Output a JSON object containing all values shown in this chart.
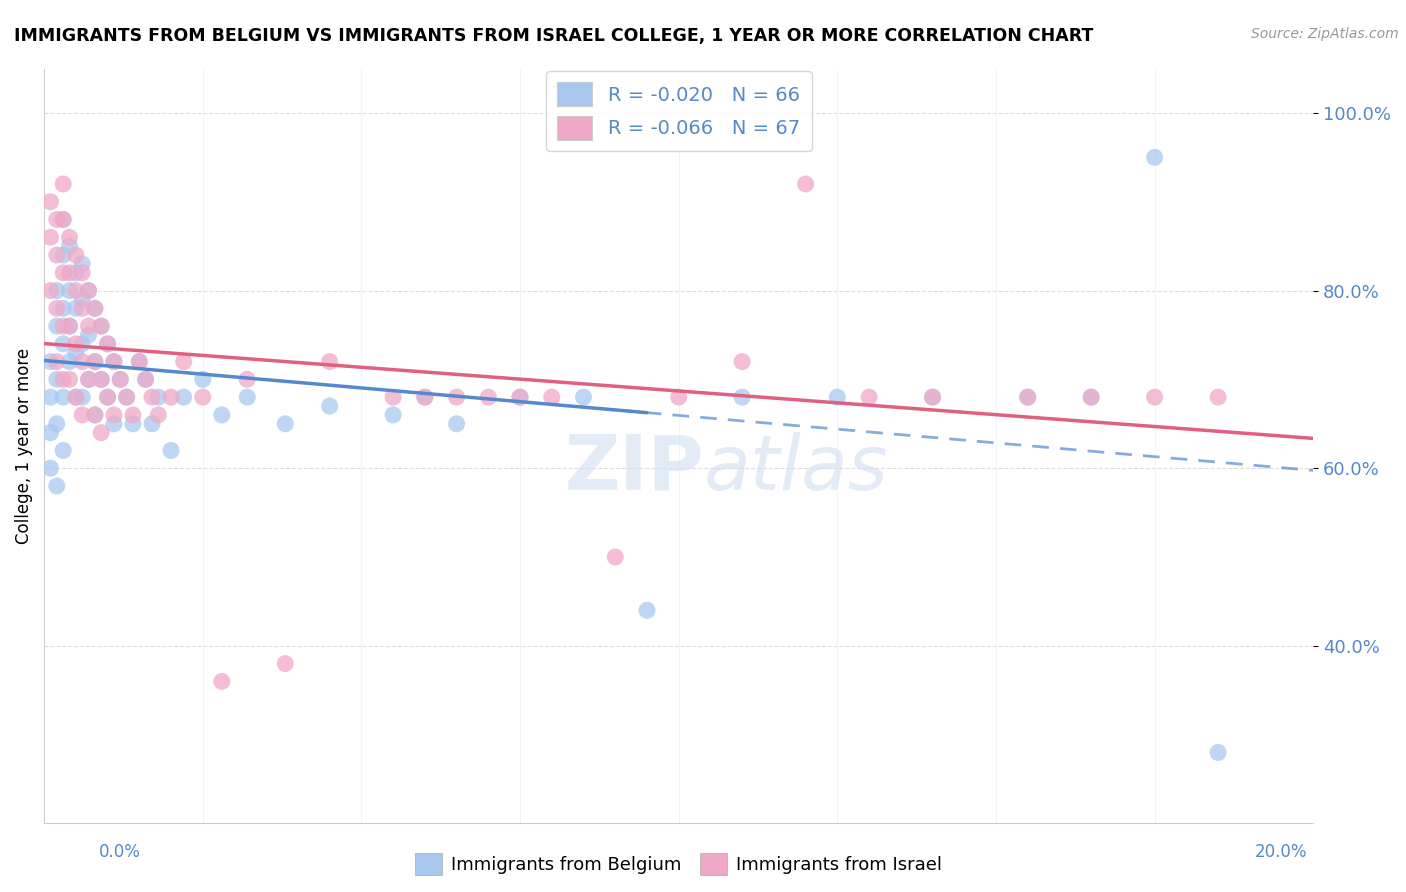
{
  "title": "IMMIGRANTS FROM BELGIUM VS IMMIGRANTS FROM ISRAEL COLLEGE, 1 YEAR OR MORE CORRELATION CHART",
  "source": "Source: ZipAtlas.com",
  "ylabel": "College, 1 year or more",
  "legend_label_belgium": "Immigrants from Belgium",
  "legend_label_israel": "Immigrants from Israel",
  "belgium_color": "#a8c8f0",
  "israel_color": "#f0a8c8",
  "belgium_line_color": "#5588cc",
  "israel_line_color": "#e06080",
  "r_belgium": -0.02,
  "n_belgium": 66,
  "r_israel": -0.066,
  "n_israel": 67,
  "xlim": [
    0.0,
    0.2
  ],
  "ylim": [
    0.2,
    1.05
  ],
  "watermark": "ZIPatlas",
  "belgium_x": [
    0.001,
    0.001,
    0.001,
    0.001,
    0.002,
    0.002,
    0.002,
    0.002,
    0.002,
    0.003,
    0.003,
    0.003,
    0.003,
    0.003,
    0.003,
    0.004,
    0.004,
    0.004,
    0.004,
    0.005,
    0.005,
    0.005,
    0.005,
    0.006,
    0.006,
    0.006,
    0.006,
    0.007,
    0.007,
    0.007,
    0.008,
    0.008,
    0.008,
    0.009,
    0.009,
    0.01,
    0.01,
    0.011,
    0.011,
    0.012,
    0.013,
    0.014,
    0.015,
    0.016,
    0.017,
    0.018,
    0.02,
    0.022,
    0.025,
    0.028,
    0.032,
    0.038,
    0.045,
    0.055,
    0.06,
    0.065,
    0.075,
    0.085,
    0.095,
    0.11,
    0.125,
    0.14,
    0.155,
    0.165,
    0.175,
    0.185
  ],
  "belgium_y": [
    0.72,
    0.68,
    0.64,
    0.6,
    0.8,
    0.76,
    0.7,
    0.65,
    0.58,
    0.88,
    0.84,
    0.78,
    0.74,
    0.68,
    0.62,
    0.85,
    0.8,
    0.76,
    0.72,
    0.82,
    0.78,
    0.73,
    0.68,
    0.83,
    0.79,
    0.74,
    0.68,
    0.8,
    0.75,
    0.7,
    0.78,
    0.72,
    0.66,
    0.76,
    0.7,
    0.74,
    0.68,
    0.72,
    0.65,
    0.7,
    0.68,
    0.65,
    0.72,
    0.7,
    0.65,
    0.68,
    0.62,
    0.68,
    0.7,
    0.66,
    0.68,
    0.65,
    0.67,
    0.66,
    0.68,
    0.65,
    0.68,
    0.68,
    0.44,
    0.68,
    0.68,
    0.68,
    0.68,
    0.68,
    0.95,
    0.28
  ],
  "israel_x": [
    0.001,
    0.001,
    0.001,
    0.002,
    0.002,
    0.002,
    0.002,
    0.003,
    0.003,
    0.003,
    0.003,
    0.003,
    0.004,
    0.004,
    0.004,
    0.004,
    0.005,
    0.005,
    0.005,
    0.005,
    0.006,
    0.006,
    0.006,
    0.006,
    0.007,
    0.007,
    0.007,
    0.008,
    0.008,
    0.008,
    0.009,
    0.009,
    0.009,
    0.01,
    0.01,
    0.011,
    0.011,
    0.012,
    0.013,
    0.014,
    0.015,
    0.016,
    0.017,
    0.018,
    0.02,
    0.022,
    0.025,
    0.028,
    0.032,
    0.038,
    0.045,
    0.055,
    0.065,
    0.075,
    0.09,
    0.1,
    0.11,
    0.13,
    0.14,
    0.155,
    0.165,
    0.175,
    0.185,
    0.06,
    0.07,
    0.08,
    0.12
  ],
  "israel_y": [
    0.9,
    0.86,
    0.8,
    0.88,
    0.84,
    0.78,
    0.72,
    0.92,
    0.88,
    0.82,
    0.76,
    0.7,
    0.86,
    0.82,
    0.76,
    0.7,
    0.84,
    0.8,
    0.74,
    0.68,
    0.82,
    0.78,
    0.72,
    0.66,
    0.8,
    0.76,
    0.7,
    0.78,
    0.72,
    0.66,
    0.76,
    0.7,
    0.64,
    0.74,
    0.68,
    0.72,
    0.66,
    0.7,
    0.68,
    0.66,
    0.72,
    0.7,
    0.68,
    0.66,
    0.68,
    0.72,
    0.68,
    0.36,
    0.7,
    0.38,
    0.72,
    0.68,
    0.68,
    0.68,
    0.5,
    0.68,
    0.72,
    0.68,
    0.68,
    0.68,
    0.68,
    0.68,
    0.68,
    0.68,
    0.68,
    0.68,
    0.92
  ]
}
